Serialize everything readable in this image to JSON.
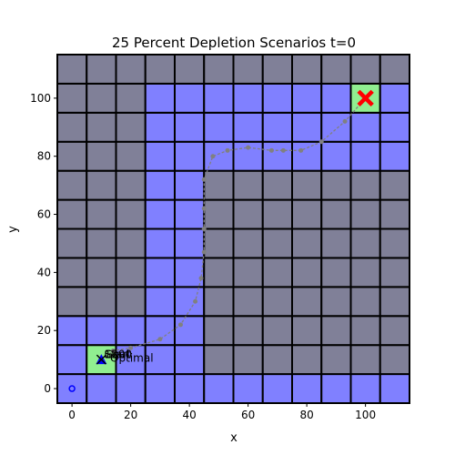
{
  "chart_data": {
    "type": "scatter",
    "title": "25 Percent Depletion Scenarios t=0",
    "xlabel": "x",
    "ylabel": "y",
    "xlim": [
      -5,
      115
    ],
    "ylim": [
      -5,
      115
    ],
    "xticks": [
      0,
      20,
      40,
      60,
      80,
      100
    ],
    "yticks": [
      0,
      20,
      40,
      60,
      80,
      100
    ],
    "grid": {
      "cell_size": 10,
      "cols": 12,
      "rows": 12,
      "origin": [
        -5,
        -5
      ],
      "colors": {
        "light": "#8080ff",
        "dark": "#808098",
        "highlight": "#90ee90",
        "border": "#000000"
      },
      "cells": [
        "LLLLLLLLLLLL",
        "LHLLLDDDDDDD",
        "LLLLLDDDDDDD",
        "DDDLLDDDDDDD",
        "DDDLLDDDDDDD",
        "DDDLLDDDDDDD",
        "DDDLLDDDDDDD",
        "DDDLLDDDDDDD",
        "DDDLLLLLLLLL",
        "DDDLLLLLLLLL",
        "DDDLLLLLLLHL",
        "DDDDDDDDDDDD"
      ]
    },
    "path": {
      "color": "#808080",
      "points": [
        [
          10,
          10
        ],
        [
          14,
          13
        ],
        [
          20,
          14
        ],
        [
          30,
          17
        ],
        [
          37,
          22
        ],
        [
          42,
          30
        ],
        [
          44,
          38
        ],
        [
          45,
          47
        ],
        [
          45,
          55
        ],
        [
          45,
          62
        ],
        [
          45,
          72
        ],
        [
          48,
          80
        ],
        [
          53,
          82
        ],
        [
          60,
          83
        ],
        [
          68,
          82
        ],
        [
          72,
          82
        ],
        [
          78,
          82
        ],
        [
          85,
          85
        ],
        [
          93,
          92
        ],
        [
          100,
          100
        ]
      ]
    },
    "markers": {
      "start": {
        "x": 0,
        "y": 0,
        "color": "#0000ff"
      },
      "agent": {
        "x": 10,
        "y": 10,
        "color": "#0000ff"
      },
      "goal": {
        "x": 100,
        "y": 100,
        "color": "#ff0000"
      }
    },
    "annotations": [
      {
        "text": "Goal",
        "x": 11,
        "y": 10.5
      },
      {
        "text": "Start",
        "x": 11,
        "y": 10.5
      },
      {
        "text": "1200",
        "x": 11,
        "y": 10.5
      },
      {
        "text": "Optimal",
        "x": 13,
        "y": 9.2
      }
    ]
  }
}
